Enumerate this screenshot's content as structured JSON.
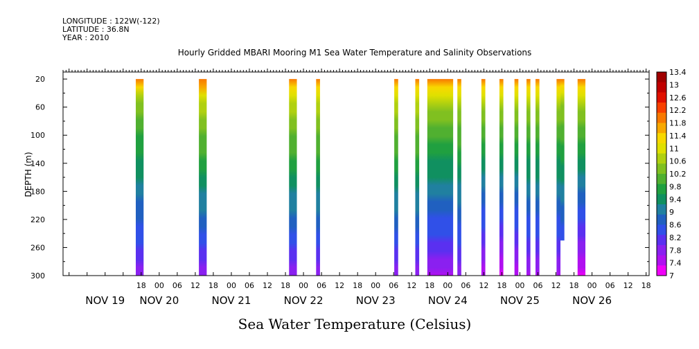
{
  "meta": {
    "longitude": "LONGITUDE : 122W(-122)",
    "latitude": "LATITUDE : 36.8N",
    "year": "YEAR : 2010"
  },
  "chart_data": {
    "type": "heatmap",
    "title": "Hourly Gridded MBARI Mooring M1 Sea Water Temperature and Salinity Observations",
    "subtitle": "Sea Water Temperature (Celsius)",
    "ylabel": "DEPTH (m)",
    "xlabel": "",
    "ylim": [
      300,
      10
    ],
    "xlim_hours": [
      -8,
      187
    ],
    "y_ticks": [
      20,
      60,
      100,
      140,
      180,
      220,
      260,
      300
    ],
    "x_ticks": [
      {
        "h": 18,
        "label": "18"
      },
      {
        "h": 24,
        "label": "00"
      },
      {
        "h": 30,
        "label": "06"
      },
      {
        "h": 36,
        "label": "12"
      },
      {
        "h": 42,
        "label": "18"
      },
      {
        "h": 48,
        "label": "00"
      },
      {
        "h": 54,
        "label": "06"
      },
      {
        "h": 60,
        "label": "12"
      },
      {
        "h": 66,
        "label": "18"
      },
      {
        "h": 72,
        "label": "00"
      },
      {
        "h": 78,
        "label": "06"
      },
      {
        "h": 84,
        "label": "12"
      },
      {
        "h": 90,
        "label": "18"
      },
      {
        "h": 96,
        "label": "00"
      },
      {
        "h": 102,
        "label": "06"
      },
      {
        "h": 108,
        "label": "12"
      },
      {
        "h": 114,
        "label": "18"
      },
      {
        "h": 120,
        "label": "00"
      },
      {
        "h": 126,
        "label": "06"
      },
      {
        "h": 132,
        "label": "12"
      },
      {
        "h": 138,
        "label": "18"
      },
      {
        "h": 144,
        "label": "00"
      },
      {
        "h": 150,
        "label": "06"
      },
      {
        "h": 156,
        "label": "12"
      },
      {
        "h": 162,
        "label": "18"
      },
      {
        "h": 168,
        "label": "00"
      },
      {
        "h": 174,
        "label": "06"
      },
      {
        "h": 180,
        "label": "12"
      },
      {
        "h": 186,
        "label": "18"
      }
    ],
    "date_labels": [
      {
        "h": 6,
        "label": "NOV 19"
      },
      {
        "h": 24,
        "label": "NOV 20"
      },
      {
        "h": 48,
        "label": "NOV 21"
      },
      {
        "h": 72,
        "label": "NOV 22"
      },
      {
        "h": 96,
        "label": "NOV 23"
      },
      {
        "h": 120,
        "label": "NOV 24"
      },
      {
        "h": 144,
        "label": "NOV 25"
      },
      {
        "h": 168,
        "label": "NOV 26"
      }
    ],
    "colorbar": {
      "min": 7,
      "max": 13.4,
      "labels": [
        "13.4",
        "13",
        "12.6",
        "12.2",
        "11.8",
        "11.4",
        "11",
        "10.6",
        "10.2",
        "9.8",
        "9.4",
        "9",
        "8.6",
        "8.2",
        "7.8",
        "7.4",
        "7"
      ],
      "colors": [
        "#f000f8",
        "#b010f0",
        "#8a20f0",
        "#5a30f0",
        "#3050e8",
        "#2060c0",
        "#2080a0",
        "#109060",
        "#20a040",
        "#50b030",
        "#80c020",
        "#b0d010",
        "#e0e000",
        "#f8d800",
        "#f8a800",
        "#f87800",
        "#f84000",
        "#e01000",
        "#c00000",
        "#a00000"
      ]
    },
    "bands": [
      {
        "start": 16.2,
        "end": 18.8,
        "surface_temp": 12.0,
        "t_at_50": 10.4,
        "bottom_temp": 7.8,
        "max_depth": 300
      },
      {
        "start": 37.2,
        "end": 39.8,
        "surface_temp": 12.0,
        "t_at_50": 10.8,
        "bottom_temp": 7.8,
        "max_depth": 300
      },
      {
        "start": 67.2,
        "end": 69.8,
        "surface_temp": 11.8,
        "t_at_50": 10.8,
        "bottom_temp": 7.8,
        "max_depth": 300
      },
      {
        "start": 76.2,
        "end": 77.5,
        "surface_temp": 11.8,
        "t_at_50": 10.8,
        "bottom_temp": 7.8,
        "max_depth": 300
      },
      {
        "start": 102.2,
        "end": 103.5,
        "surface_temp": 11.8,
        "t_at_50": 10.8,
        "bottom_temp": 7.8,
        "max_depth": 300
      },
      {
        "start": 109.2,
        "end": 110.5,
        "surface_temp": 11.8,
        "t_at_50": 10.8,
        "bottom_temp": 7.8,
        "max_depth": 300
      },
      {
        "start": 113.2,
        "end": 121.8,
        "surface_temp": 11.8,
        "t_at_50": 10.6,
        "bottom_temp": 7.6,
        "max_depth": 300
      },
      {
        "start": 123.2,
        "end": 124.5,
        "surface_temp": 11.8,
        "t_at_50": 10.6,
        "bottom_temp": 7.8,
        "max_depth": 300
      },
      {
        "start": 131.2,
        "end": 132.5,
        "surface_temp": 11.8,
        "t_at_50": 10.6,
        "bottom_temp": 7.4,
        "max_depth": 300
      },
      {
        "start": 137.2,
        "end": 138.5,
        "surface_temp": 11.8,
        "t_at_50": 10.6,
        "bottom_temp": 7.2,
        "max_depth": 300
      },
      {
        "start": 142.2,
        "end": 143.5,
        "surface_temp": 11.8,
        "t_at_50": 10.6,
        "bottom_temp": 7.4,
        "max_depth": 300
      },
      {
        "start": 146.2,
        "end": 147.5,
        "surface_temp": 11.8,
        "t_at_50": 10.6,
        "bottom_temp": 7.6,
        "max_depth": 300
      },
      {
        "start": 149.2,
        "end": 150.5,
        "surface_temp": 11.8,
        "t_at_50": 10.6,
        "bottom_temp": 7.6,
        "max_depth": 300
      },
      {
        "start": 156.2,
        "end": 157.5,
        "surface_temp": 11.8,
        "t_at_50": 10.6,
        "bottom_temp": 7.6,
        "max_depth": 300
      },
      {
        "start": 157.5,
        "end": 158.8,
        "surface_temp": 11.8,
        "t_at_50": 10.6,
        "bottom_temp": 7.8,
        "max_depth": 250
      },
      {
        "start": 163.2,
        "end": 165.8,
        "surface_temp": 11.8,
        "t_at_50": 10.6,
        "bottom_temp": 7.2,
        "max_depth": 300
      }
    ]
  }
}
